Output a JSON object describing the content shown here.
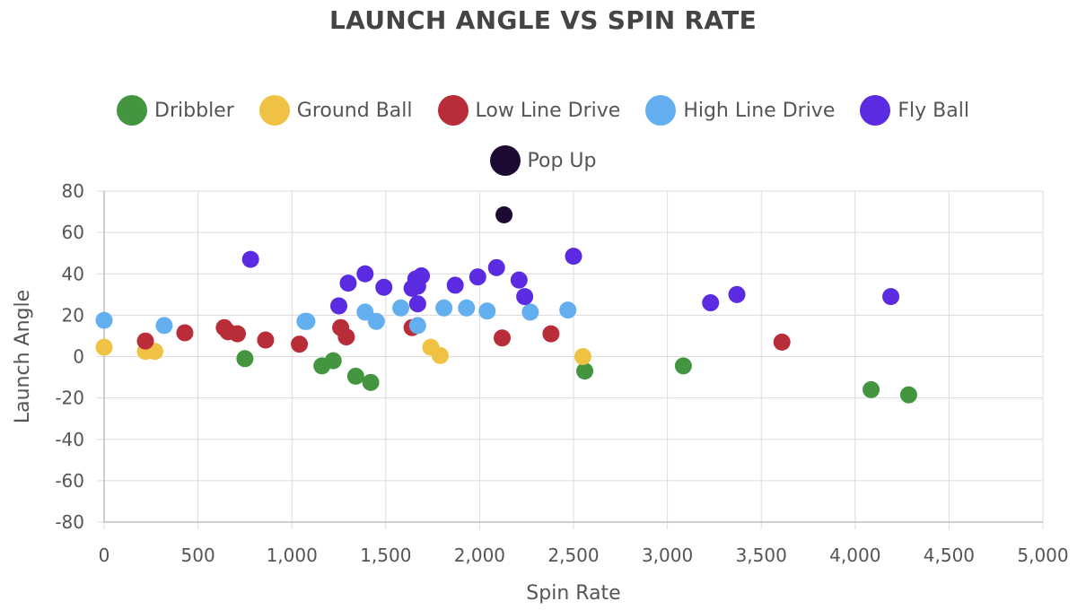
{
  "chart_data": {
    "type": "scatter",
    "title": "LAUNCH ANGLE VS SPIN RATE",
    "xlabel": "Spin Rate",
    "ylabel": "Launch Angle",
    "xlim": [
      0,
      5000
    ],
    "ylim": [
      -80,
      80
    ],
    "x_ticks": [
      "0",
      "500",
      "1,000",
      "1,500",
      "2,000",
      "2,500",
      "3,000",
      "3,500",
      "4,000",
      "4,500",
      "5,000"
    ],
    "y_ticks": [
      "80",
      "60",
      "40",
      "20",
      "0",
      "-20",
      "-40",
      "-60",
      "-80"
    ],
    "grid": true,
    "legend_position": "top",
    "series": [
      {
        "name": "Dribbler",
        "color": "#43953f",
        "points": [
          [
            750,
            -1
          ],
          [
            1160,
            -4.5
          ],
          [
            1220,
            -2
          ],
          [
            1340,
            -9.5
          ],
          [
            1420,
            -12.5
          ],
          [
            2560,
            -7
          ],
          [
            3085,
            -4.5
          ],
          [
            4085,
            -16
          ],
          [
            4285,
            -18.5
          ]
        ]
      },
      {
        "name": "Ground Ball",
        "color": "#efc244",
        "points": [
          [
            0,
            4.5
          ],
          [
            220,
            2.5
          ],
          [
            270,
            2.5
          ],
          [
            1740,
            4.5
          ],
          [
            1790,
            0.5
          ],
          [
            2550,
            0
          ]
        ]
      },
      {
        "name": "Low Line Drive",
        "color": "#b82d38",
        "points": [
          [
            220,
            7.5
          ],
          [
            430,
            11.5
          ],
          [
            640,
            14
          ],
          [
            660,
            12
          ],
          [
            710,
            11
          ],
          [
            860,
            8
          ],
          [
            1040,
            6
          ],
          [
            1260,
            14
          ],
          [
            1290,
            9.5
          ],
          [
            1640,
            14
          ],
          [
            2120,
            9
          ],
          [
            2380,
            11
          ],
          [
            3610,
            7
          ]
        ]
      },
      {
        "name": "High Line Drive",
        "color": "#63aff0",
        "points": [
          [
            0,
            17.5
          ],
          [
            320,
            15
          ],
          [
            1070,
            17
          ],
          [
            1080,
            17
          ],
          [
            1390,
            21.5
          ],
          [
            1450,
            17
          ],
          [
            1580,
            23.5
          ],
          [
            1670,
            15
          ],
          [
            1810,
            23.5
          ],
          [
            1930,
            23.5
          ],
          [
            2040,
            22
          ],
          [
            2270,
            21.5
          ],
          [
            2470,
            22.5
          ]
        ]
      },
      {
        "name": "Fly Ball",
        "color": "#5a2be0",
        "points": [
          [
            780,
            47
          ],
          [
            1250,
            24.5
          ],
          [
            1300,
            35.5
          ],
          [
            1390,
            40
          ],
          [
            1490,
            33.5
          ],
          [
            1640,
            33
          ],
          [
            1660,
            37.5
          ],
          [
            1670,
            34
          ],
          [
            1670,
            25.5
          ],
          [
            1690,
            39
          ],
          [
            1870,
            34.5
          ],
          [
            1990,
            38.5
          ],
          [
            2090,
            43
          ],
          [
            2210,
            37
          ],
          [
            2240,
            29
          ],
          [
            2500,
            48.5
          ],
          [
            3230,
            26
          ],
          [
            3370,
            30
          ],
          [
            4190,
            29
          ]
        ]
      },
      {
        "name": "Pop Up",
        "color": "#1d0a33",
        "points": [
          [
            2130,
            68.5
          ]
        ]
      }
    ]
  }
}
